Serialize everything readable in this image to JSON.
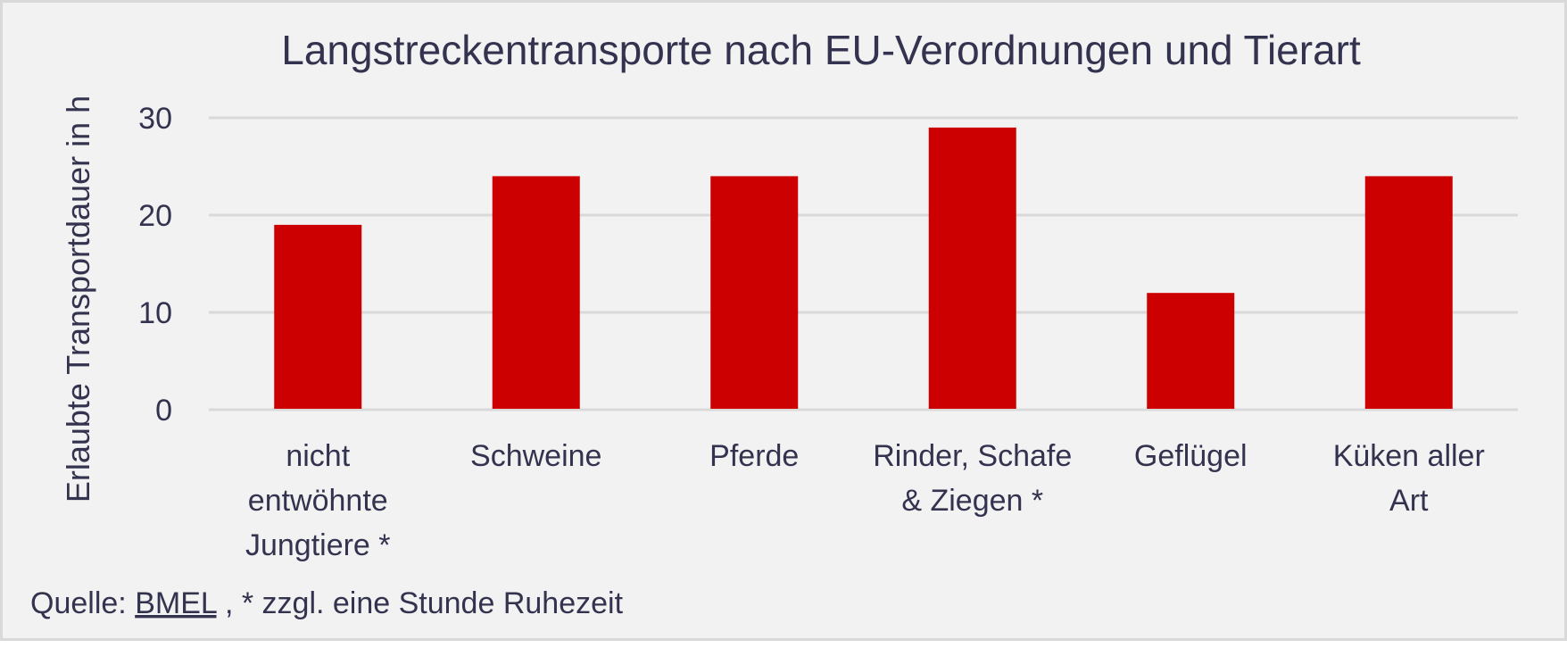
{
  "chart_data": {
    "type": "bar",
    "title": "Langstreckentransporte nach EU-Verordnungen und Tierart",
    "xlabel": "",
    "ylabel": "Erlaubte Transportdauer in h",
    "ylim": [
      0,
      30
    ],
    "yticks": [
      0,
      10,
      20,
      30
    ],
    "grid": true,
    "categories": [
      [
        "nicht",
        "entwöhnte",
        "Jungtiere *"
      ],
      [
        "Schweine"
      ],
      [
        "Pferde"
      ],
      [
        "Rinder, Schafe",
        "& Ziegen *"
      ],
      [
        "Geflügel"
      ],
      [
        "Küken aller",
        "Art"
      ]
    ],
    "values": [
      19,
      24,
      24,
      29,
      12,
      24
    ],
    "bar_color": "#cc0000",
    "grid_color": "#d9d9d9",
    "text_color": "#333350",
    "background": "#f2f2f2"
  },
  "footnote": {
    "prefix": "Quelle: ",
    "link": "BMEL",
    "suffix": " , * zzgl. eine Stunde Ruhezeit"
  }
}
